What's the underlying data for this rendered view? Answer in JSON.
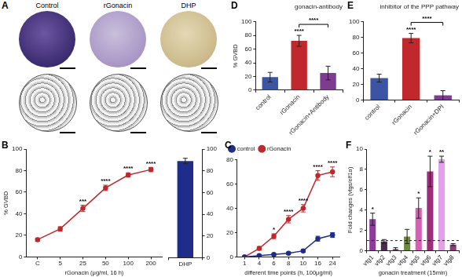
{
  "images": {
    "panel": "A",
    "labels": [
      "Control",
      "rGonacin",
      "DHP"
    ]
  },
  "chart_data": [
    {
      "panel": "B",
      "type": "line",
      "x_label": "rGonacin (μg/ml, 16 h)",
      "y_label": "% GVBD",
      "categories": [
        "C",
        "5",
        "25",
        "50",
        "100",
        "200"
      ],
      "values": [
        16,
        26,
        45,
        64,
        76,
        81
      ],
      "errors": [
        1.5,
        2,
        3,
        2.5,
        2,
        2
      ],
      "color": "#c0282d",
      "marker": "circle",
      "ylim": [
        0,
        100
      ],
      "yticks": [
        0,
        20,
        40,
        60,
        80,
        100
      ],
      "grid": false,
      "annotations": [
        {
          "category": "25",
          "text": "***"
        },
        {
          "category": "50",
          "text": "****"
        },
        {
          "category": "100",
          "text": "****"
        },
        {
          "category": "200",
          "text": "****"
        }
      ]
    },
    {
      "type": "bar",
      "categories": [
        "DHP"
      ],
      "series": [
        {
          "values": [
            89
          ],
          "errors": [
            2.5
          ],
          "color": "#1f2d8a",
          "axis": "y2"
        }
      ],
      "y2lim": [
        0,
        100
      ],
      "y2ticks": [
        0,
        20,
        40,
        60,
        80,
        100
      ],
      "grid": false
    },
    {
      "panel": "C",
      "type": "line",
      "x_label": "different time points (h, 100μg/ml)",
      "categories": [
        "1",
        "4",
        "6",
        "8",
        "10",
        "16",
        "24"
      ],
      "series": [
        {
          "name": "control",
          "color": "#1f2d8a",
          "marker": "circle",
          "values": [
            0,
            1,
            2,
            3,
            5,
            15,
            18
          ],
          "errors": [
            0,
            0.5,
            0.5,
            0.8,
            1,
            2,
            2
          ]
        },
        {
          "name": "rGonacin",
          "color": "#c0282d",
          "marker": "circle",
          "values": [
            0,
            7,
            17,
            31,
            40,
            67,
            70
          ],
          "errors": [
            0,
            1.5,
            2,
            3,
            3,
            4,
            4
          ]
        }
      ],
      "ylim": [
        0,
        80
      ],
      "yticks": [
        0,
        20,
        40,
        60,
        80
      ],
      "grid": false,
      "legend": "top left",
      "annotations": [
        {
          "category": "6",
          "text": "*"
        },
        {
          "category": "8",
          "text": "****"
        },
        {
          "category": "10",
          "text": "****"
        },
        {
          "category": "16",
          "text": "****"
        },
        {
          "category": "24",
          "text": "****"
        }
      ]
    },
    {
      "panel": "D",
      "type": "bar",
      "title": "gonacin-antibody",
      "y_label": "% GVBD",
      "categories": [
        "control",
        "rGonacin",
        "rGonacin+Antibody"
      ],
      "values": [
        19,
        72,
        25
      ],
      "errors": [
        7,
        8,
        10
      ],
      "colors": [
        "#3b54a4",
        "#c0282d",
        "#7d3c8f"
      ],
      "ylim": [
        0,
        100
      ],
      "yticks": [
        0,
        20,
        40,
        60,
        80,
        100
      ],
      "grid": false,
      "annotations": [
        {
          "category": "rGonacin",
          "text": "****"
        }
      ],
      "brackets": [
        {
          "from": "rGonacin",
          "to": "rGonacin+Antibody",
          "text": "****"
        }
      ]
    },
    {
      "panel": "E",
      "type": "bar",
      "title": "inhibitor of the PPP pathway",
      "categories": [
        "control",
        "rGonacin",
        "rGonacin+DPI"
      ],
      "values": [
        28,
        79,
        6
      ],
      "errors": [
        5,
        6,
        6
      ],
      "colors": [
        "#3b54a4",
        "#c0282d",
        "#7d3c8f"
      ],
      "ylim": [
        0,
        100
      ],
      "yticks": [
        0,
        20,
        40,
        60,
        80,
        100
      ],
      "grid": false,
      "annotations": [
        {
          "category": "rGonacin",
          "text": "****"
        }
      ],
      "brackets": [
        {
          "from": "rGonacin",
          "to": "rGonacin+DPI",
          "text": "****"
        }
      ]
    },
    {
      "panel": "F",
      "type": "bar",
      "x_label": "gonacin treatment (15min)",
      "y_label": "Fold changes (vtgs/elf1α)",
      "categories": [
        "vtg1",
        "vtg2",
        "vtg3",
        "vtg4",
        "vtg5",
        "vtg6",
        "vtg7",
        "vtg8"
      ],
      "values": [
        3.1,
        0.9,
        0.2,
        1.4,
        4.2,
        7.8,
        9.0,
        0.6
      ],
      "errors": [
        0.6,
        0.2,
        0.1,
        0.7,
        1.0,
        1.5,
        0.3,
        0.1
      ],
      "colors": [
        "#8f3b9c",
        "#4b2a4e",
        "#e6a1cf",
        "#6b8a3a",
        "#d560b5",
        "#9c2f7d",
        "#e2a0e6",
        "#8b3d73"
      ],
      "ylim": [
        0,
        10
      ],
      "yticks": [
        0,
        2,
        4,
        6,
        8,
        10
      ],
      "grid": false,
      "reference_line": 1,
      "annotations": [
        {
          "category": "vtg1",
          "text": "*"
        },
        {
          "category": "vtg5",
          "text": "*"
        },
        {
          "category": "vtg6",
          "text": "*"
        },
        {
          "category": "vtg7",
          "text": "**"
        }
      ]
    }
  ]
}
